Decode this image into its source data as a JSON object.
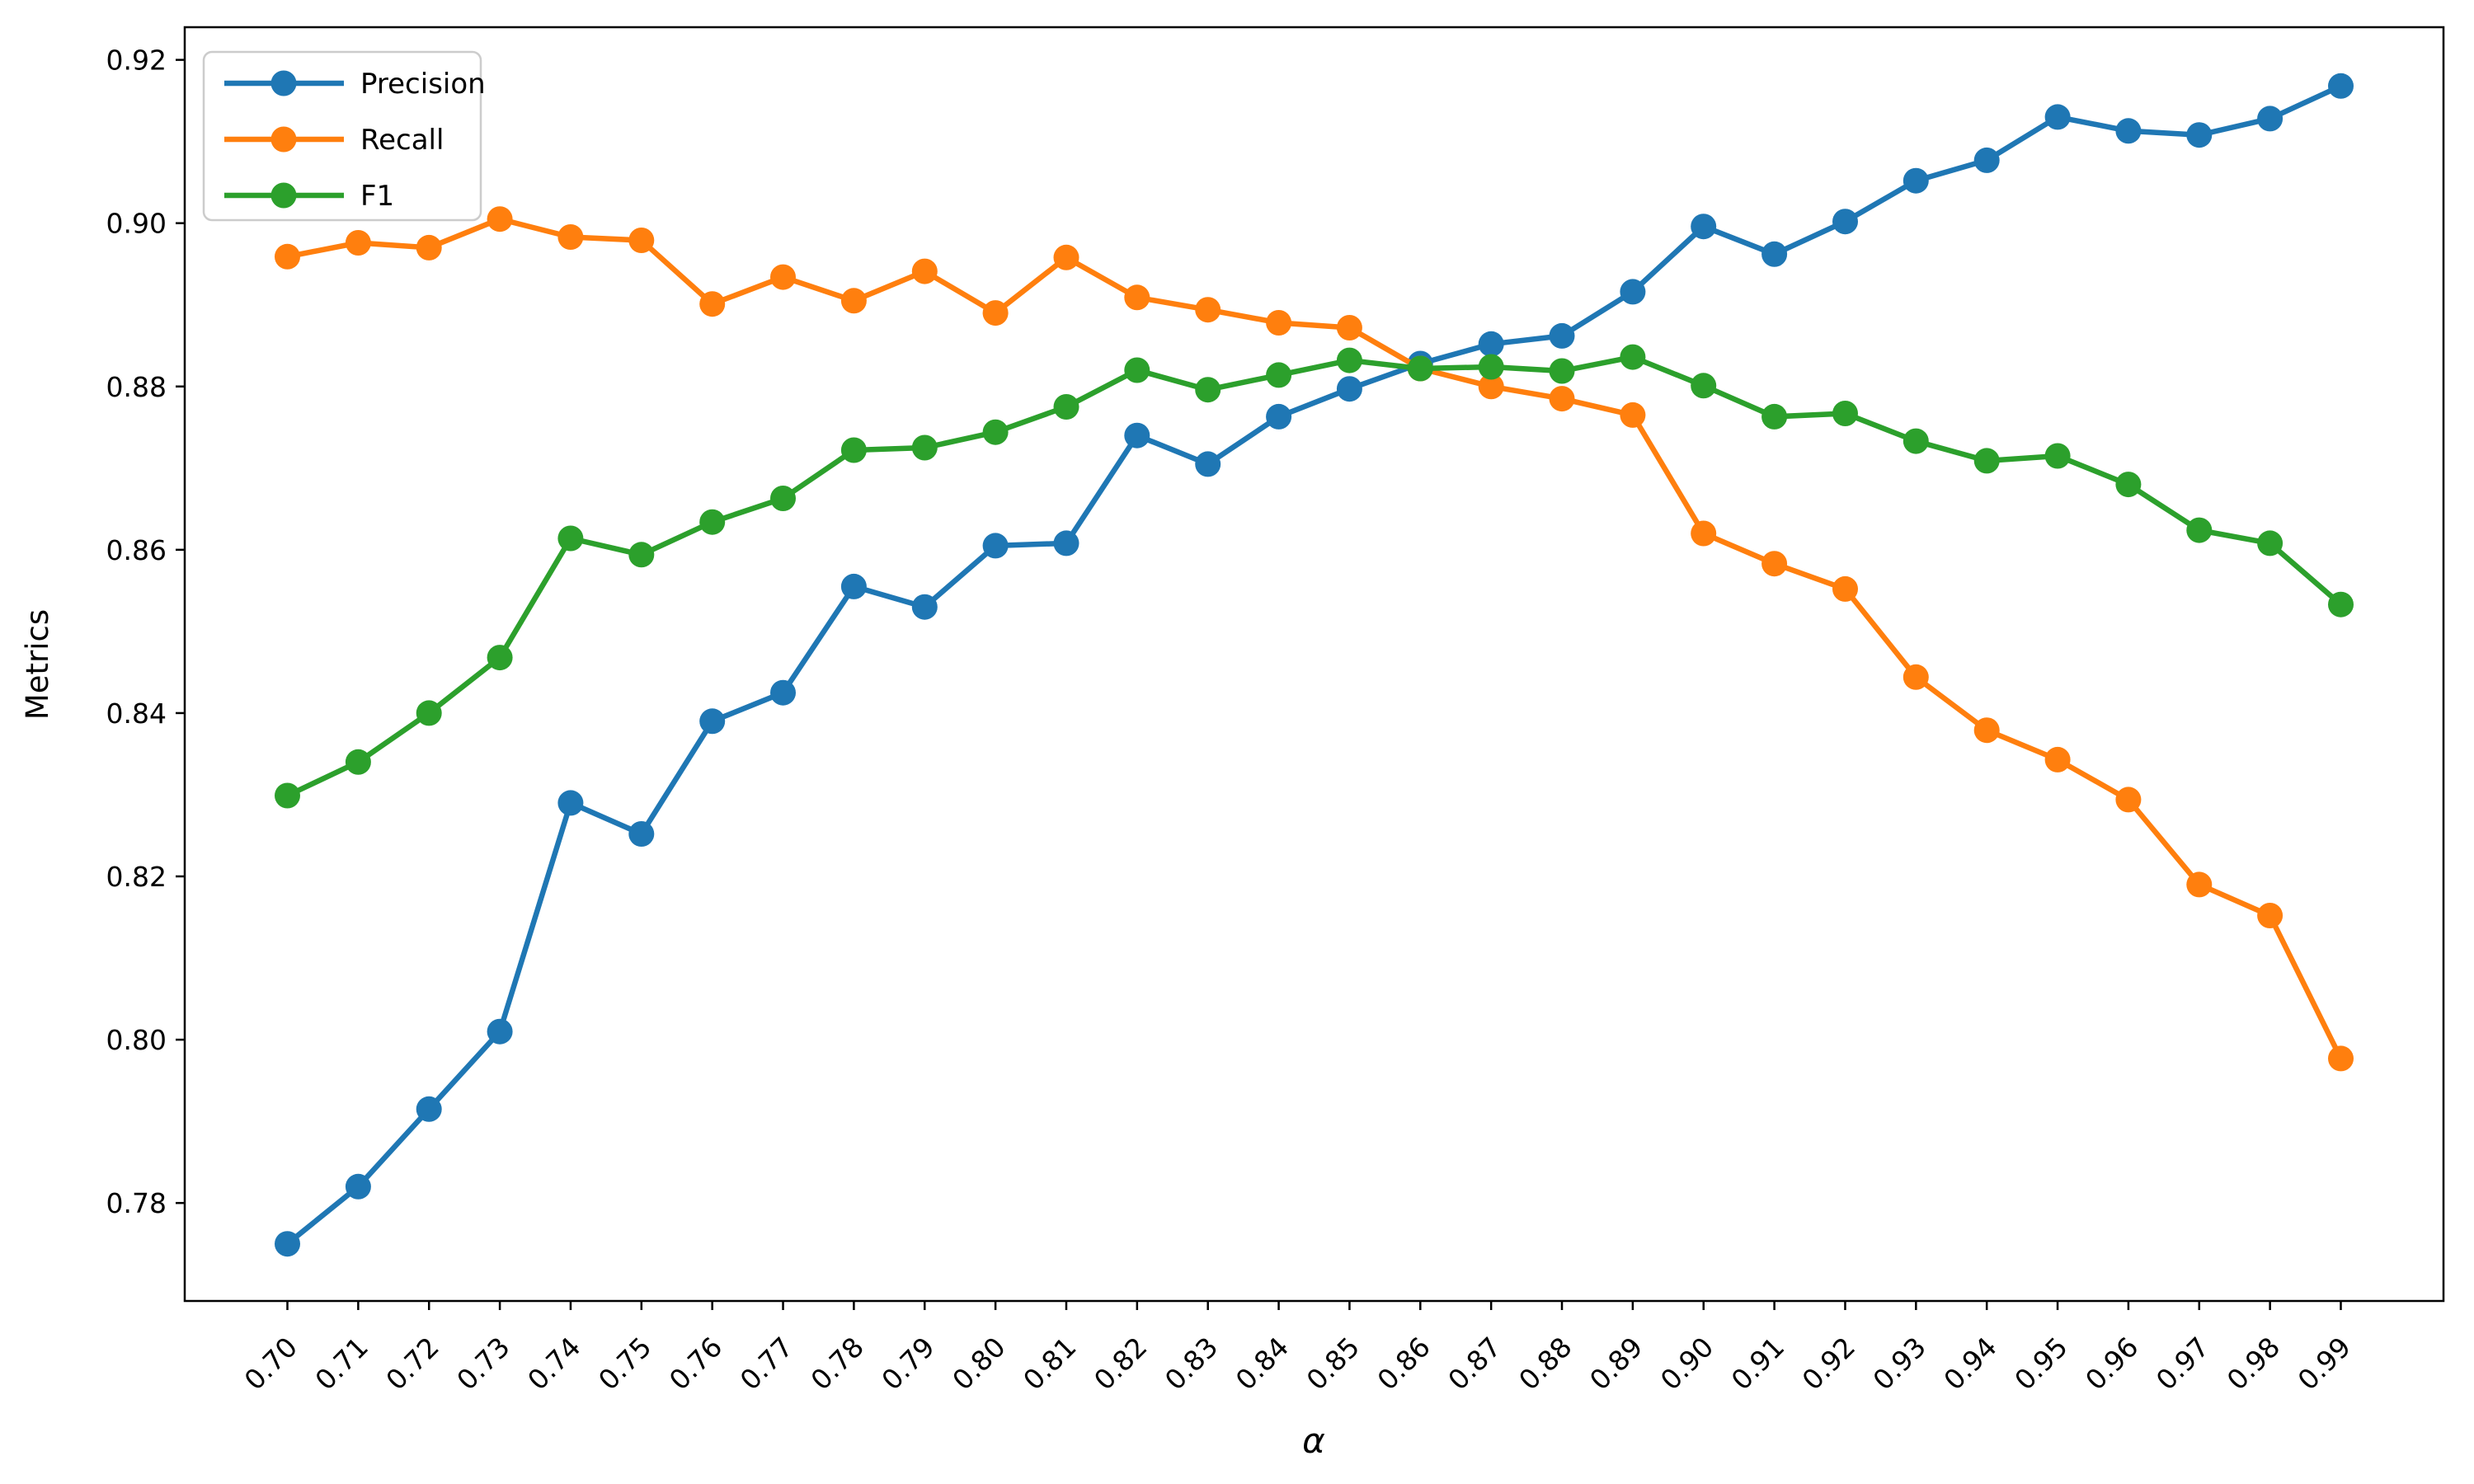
{
  "chart_data": {
    "type": "line",
    "title": "",
    "xlabel": "α",
    "ylabel": "Metrics",
    "grid": false,
    "legend_position": "upper left",
    "background_color": "#ffffff",
    "text_color": "#000000",
    "axis_color": "#000000",
    "legend_border_color": "#cccccc",
    "xlim": [
      0.6855,
      1.0045
    ],
    "ylim": [
      0.768,
      0.924
    ],
    "x": [
      0.7,
      0.71,
      0.72,
      0.73,
      0.74,
      0.75,
      0.76,
      0.77,
      0.78,
      0.79,
      0.8,
      0.81,
      0.82,
      0.83,
      0.84,
      0.85,
      0.86,
      0.87,
      0.88,
      0.89,
      0.9,
      0.91,
      0.92,
      0.93,
      0.94,
      0.95,
      0.96,
      0.97,
      0.98,
      0.99
    ],
    "x_tick_labels": [
      "0.70",
      "0.71",
      "0.72",
      "0.73",
      "0.74",
      "0.75",
      "0.76",
      "0.77",
      "0.78",
      "0.79",
      "0.80",
      "0.81",
      "0.82",
      "0.83",
      "0.84",
      "0.85",
      "0.86",
      "0.87",
      "0.88",
      "0.89",
      "0.90",
      "0.91",
      "0.92",
      "0.93",
      "0.94",
      "0.95",
      "0.96",
      "0.97",
      "0.98",
      "0.99"
    ],
    "y_ticks": [
      0.78,
      0.8,
      0.82,
      0.84,
      0.86,
      0.88,
      0.9,
      0.92
    ],
    "y_tick_labels": [
      "0.78",
      "0.80",
      "0.82",
      "0.84",
      "0.86",
      "0.88",
      "0.90",
      "0.92"
    ],
    "series": [
      {
        "name": "Precision",
        "color": "#1f77b4",
        "values": [
          0.775,
          0.782,
          0.7915,
          0.801,
          0.829,
          0.8252,
          0.839,
          0.8425,
          0.8555,
          0.853,
          0.8605,
          0.8608,
          0.874,
          0.8705,
          0.8763,
          0.8797,
          0.8828,
          0.8852,
          0.8862,
          0.8916,
          0.8996,
          0.8962,
          0.9002,
          0.9052,
          0.9077,
          0.913,
          0.9113,
          0.9108,
          0.9128,
          0.9168
        ]
      },
      {
        "name": "Recall",
        "color": "#ff7f0e",
        "values": [
          0.8959,
          0.8976,
          0.897,
          0.9005,
          0.8983,
          0.8979,
          0.8901,
          0.8934,
          0.8905,
          0.8941,
          0.889,
          0.8958,
          0.8909,
          0.8894,
          0.8878,
          0.8872,
          0.8822,
          0.88,
          0.8785,
          0.8765,
          0.862,
          0.8583,
          0.8552,
          0.8444,
          0.8379,
          0.8343,
          0.8294,
          0.819,
          0.8152,
          0.7977
        ]
      },
      {
        "name": "F1",
        "color": "#2ca02c",
        "values": [
          0.8299,
          0.834,
          0.84,
          0.8468,
          0.8614,
          0.8594,
          0.8634,
          0.8663,
          0.8722,
          0.8725,
          0.8744,
          0.8775,
          0.882,
          0.8796,
          0.8814,
          0.8832,
          0.8822,
          0.8824,
          0.8819,
          0.8836,
          0.8801,
          0.8763,
          0.8767,
          0.8733,
          0.8709,
          0.8715,
          0.868,
          0.8624,
          0.8608,
          0.8533
        ]
      }
    ]
  }
}
